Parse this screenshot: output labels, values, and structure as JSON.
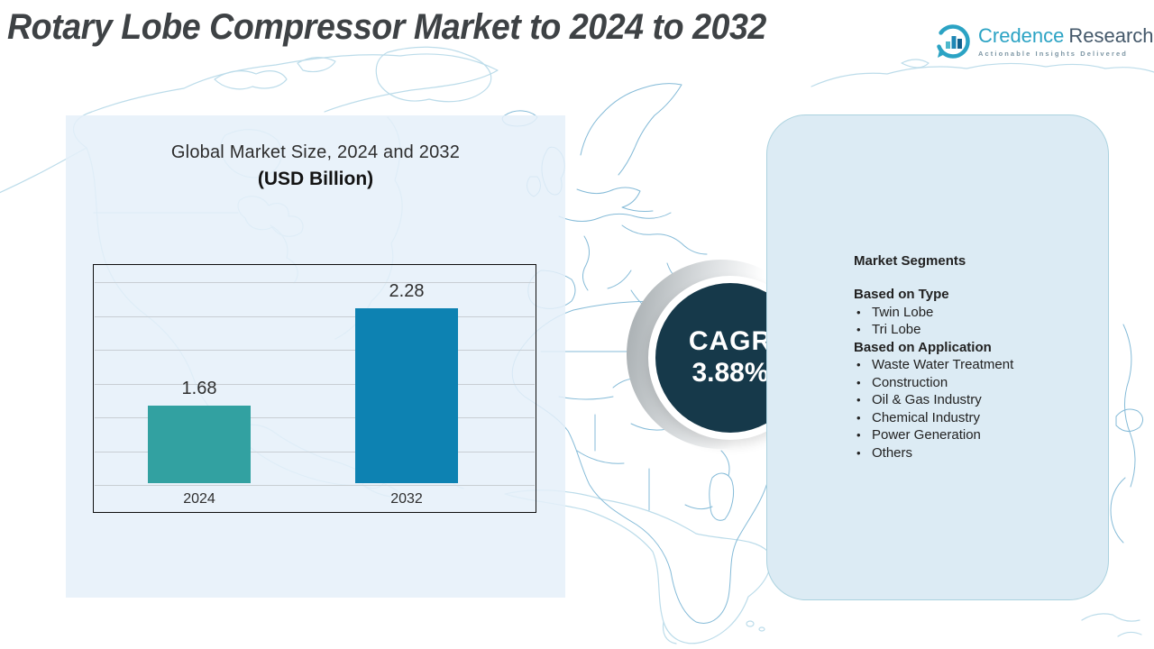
{
  "header": {
    "title": "Rotary Lobe Compressor Market to 2024 to 2032",
    "logo": {
      "brand_primary": "Credence",
      "brand_secondary": "Research",
      "tagline": "Actionable Insights Delivered"
    }
  },
  "chart_panel": {
    "title_line1": "Global Market Size,  2024 and 2032",
    "title_line2": "(USD Billion)"
  },
  "chart_data": {
    "type": "bar",
    "title": "Global Market Size, 2024 and 2032 (USD Billion)",
    "categories": [
      "2024",
      "2032"
    ],
    "values": [
      1.68,
      2.28
    ],
    "value_labels": [
      "1.68",
      "2.28"
    ],
    "bar_colors": [
      "#32a1a1",
      "#0d82b2"
    ],
    "ylim": [
      1.2,
      2.56
    ],
    "grid": true,
    "gridline_count": 7,
    "xlabel": "",
    "ylabel": "",
    "legend": "none"
  },
  "cagr": {
    "label": "CAGR",
    "value": "3.88%",
    "circle_color": "#16394a"
  },
  "segments_panel": {
    "heading": "Market Segments",
    "groups": [
      {
        "heading": "Based on Type",
        "items": [
          "Twin Lobe",
          "Tri Lobe"
        ]
      },
      {
        "heading": "Based on Application",
        "items": [
          "Waste Water Treatment",
          "Construction",
          "Oil & Gas Industry",
          "Chemical Industry",
          "Power Generation",
          "Others"
        ]
      }
    ]
  },
  "colors": {
    "bar_2024": "#32a1a1",
    "bar_2032": "#0d82b2",
    "cagr_circle": "#16394a",
    "left_panel_bg": "#e5f0f9",
    "right_panel_bg": "#dcebf4",
    "map_line_light": "#bcdcea",
    "map_line_medium": "#85bbd8",
    "brand_teal": "#2ba3c4",
    "brand_slate": "#44586a"
  }
}
